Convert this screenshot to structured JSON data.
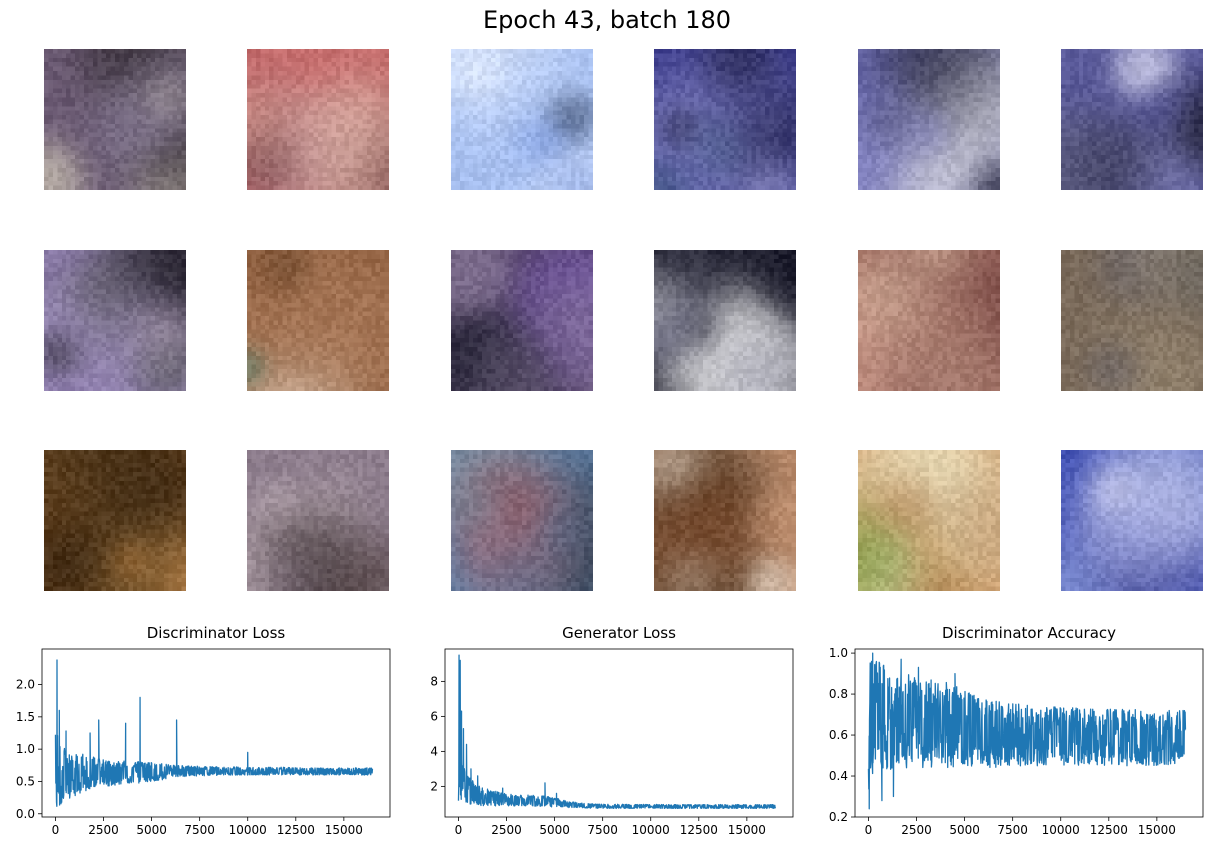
{
  "suptitle": "Epoch 43, batch 180",
  "sample_grid": {
    "rows": 3,
    "cols": 6,
    "images": [
      {
        "name": "sample-image-1",
        "palette": [
          "#6b5a73",
          "#c8c0b0",
          "#2a2428",
          "#8a7e9a",
          "#3c3a4a"
        ]
      },
      {
        "name": "sample-image-2",
        "palette": [
          "#c46a6a",
          "#f0e8e0",
          "#5a3a3a",
          "#9a5a6a",
          "#d8a090"
        ]
      },
      {
        "name": "sample-image-3",
        "palette": [
          "#a8c0f0",
          "#e8f0ff",
          "#3a4a6a",
          "#6a8ad8",
          "#2a2a3a"
        ]
      },
      {
        "name": "sample-image-4",
        "palette": [
          "#3a3a8a",
          "#1a1a3a",
          "#6a6ab8",
          "#8a8ac0",
          "#2a4a6a"
        ]
      },
      {
        "name": "sample-image-5",
        "palette": [
          "#6a6ab0",
          "#1a1a2a",
          "#8a8ac8",
          "#e0e0e0",
          "#3a3a5a"
        ]
      },
      {
        "name": "sample-image-6",
        "palette": [
          "#5a5a9a",
          "#1a1a2a",
          "#d8d8f0",
          "#8a8ac0",
          "#3a3a4a"
        ]
      },
      {
        "name": "sample-image-7",
        "palette": [
          "#8a7aa8",
          "#0a0a0a",
          "#c0b0c0",
          "#a090c0",
          "#5a5a5a"
        ]
      },
      {
        "name": "sample-image-8",
        "palette": [
          "#8a5a3a",
          "#f0e0d0",
          "#5a3a20",
          "#b08060",
          "#3a7a6a"
        ]
      },
      {
        "name": "sample-image-9",
        "palette": [
          "#5a4a6a",
          "#1a1a2a",
          "#8a7a9a",
          "#c09080",
          "#6a4aa8"
        ]
      },
      {
        "name": "sample-image-10",
        "palette": [
          "#1a1a2a",
          "#c8d8f0",
          "#3a3a4a",
          "#f0f0f0",
          "#5a5a7a"
        ]
      },
      {
        "name": "sample-image-11",
        "palette": [
          "#b07a6a",
          "#6a3a3a",
          "#d0a090",
          "#8a5a5a",
          "#e0c0a8"
        ]
      },
      {
        "name": "sample-image-12",
        "palette": [
          "#7a6a5a",
          "#4a4a3a",
          "#a09078",
          "#8a8a8a",
          "#5a5a6a"
        ]
      },
      {
        "name": "sample-image-13",
        "palette": [
          "#5a3a1a",
          "#c08040",
          "#2a1a0a",
          "#e0a060",
          "#7a5a30"
        ]
      },
      {
        "name": "sample-image-14",
        "palette": [
          "#8a7a8a",
          "#2a2020",
          "#c0b0b8",
          "#8a6ab0",
          "#5a4a4a"
        ]
      },
      {
        "name": "sample-image-15",
        "palette": [
          "#5a7aa0",
          "#c06060",
          "#2a3a4a",
          "#8090a0",
          "#a05050"
        ]
      },
      {
        "name": "sample-image-16",
        "palette": [
          "#c09070",
          "#6a3a1a",
          "#f0e0d0",
          "#9a6040",
          "#3a2a1a"
        ]
      },
      {
        "name": "sample-image-17",
        "palette": [
          "#d0a070",
          "#8aa040",
          "#f0f0d0",
          "#a06030",
          "#6a8a3a"
        ]
      },
      {
        "name": "sample-image-18",
        "palette": [
          "#3a4ab0",
          "#5a6ad0",
          "#d8d8f0",
          "#2a2a6a",
          "#8a9ad8"
        ]
      }
    ]
  },
  "line_color": "#1f77b4",
  "chart_data": [
    {
      "type": "line",
      "title": "Discriminator Loss",
      "xlabel": "",
      "ylabel": "",
      "xlim": [
        -700,
        17400
      ],
      "ylim": [
        -0.05,
        2.55
      ],
      "xticks": [
        0,
        2500,
        5000,
        7500,
        10000,
        12500,
        15000
      ],
      "xtick_labels": [
        "0",
        "2500",
        "5000",
        "7500",
        "10000",
        "12500",
        "15000"
      ],
      "yticks": [
        0.0,
        0.5,
        1.0,
        1.5,
        2.0
      ],
      "ytick_labels": [
        "0.0",
        "0.5",
        "1.0",
        "1.5",
        "2.0"
      ],
      "x": [
        0,
        60,
        150,
        300,
        500,
        800,
        1200,
        1600,
        2000,
        2500,
        3000,
        3500,
        4000,
        4500,
        5000,
        5500,
        6000,
        6500,
        7000,
        8000,
        9000,
        10000,
        11000,
        12000,
        13000,
        14000,
        15000,
        16000,
        16500
      ],
      "mean": [
        0.55,
        0.5,
        0.45,
        0.48,
        0.52,
        0.55,
        0.6,
        0.58,
        0.6,
        0.62,
        0.6,
        0.62,
        0.6,
        0.62,
        0.6,
        0.64,
        0.65,
        0.66,
        0.66,
        0.66,
        0.66,
        0.66,
        0.66,
        0.66,
        0.66,
        0.66,
        0.66,
        0.66,
        0.66
      ],
      "low": [
        0.1,
        0.05,
        0.1,
        0.15,
        0.2,
        0.25,
        0.3,
        0.35,
        0.4,
        0.42,
        0.44,
        0.45,
        0.46,
        0.48,
        0.5,
        0.52,
        0.55,
        0.57,
        0.58,
        0.59,
        0.6,
        0.6,
        0.6,
        0.6,
        0.6,
        0.6,
        0.6,
        0.6,
        0.6
      ],
      "high": [
        1.3,
        1.4,
        1.25,
        1.2,
        1.1,
        1.0,
        0.95,
        0.92,
        0.88,
        0.86,
        0.84,
        0.82,
        0.82,
        0.8,
        0.8,
        0.78,
        0.76,
        0.75,
        0.74,
        0.73,
        0.73,
        0.72,
        0.72,
        0.72,
        0.71,
        0.71,
        0.71,
        0.71,
        0.71
      ],
      "spikes": [
        [
          80,
          2.38
        ],
        [
          200,
          1.6
        ],
        [
          550,
          1.28
        ],
        [
          1800,
          1.25
        ],
        [
          2250,
          1.45
        ],
        [
          3650,
          1.4
        ],
        [
          4400,
          1.8
        ],
        [
          6300,
          1.45
        ],
        [
          10000,
          0.95
        ]
      ]
    },
    {
      "type": "line",
      "title": "Generator Loss",
      "xlabel": "",
      "ylabel": "",
      "xlim": [
        -700,
        17400
      ],
      "ylim": [
        0.25,
        9.85
      ],
      "xticks": [
        0,
        2500,
        5000,
        7500,
        10000,
        12500,
        15000
      ],
      "xtick_labels": [
        "0",
        "2500",
        "5000",
        "7500",
        "10000",
        "12500",
        "15000"
      ],
      "yticks": [
        2,
        4,
        6,
        8
      ],
      "ytick_labels": [
        "2",
        "4",
        "6",
        "8"
      ],
      "x": [
        0,
        60,
        150,
        300,
        500,
        800,
        1200,
        1600,
        2000,
        2500,
        3000,
        3500,
        4000,
        4500,
        5000,
        5500,
        6000,
        6500,
        7000,
        8000,
        9000,
        10000,
        11000,
        12000,
        13000,
        14000,
        15000,
        16000,
        16500
      ],
      "mean": [
        1.8,
        2.5,
        2.6,
        2.0,
        1.7,
        1.5,
        1.4,
        1.3,
        1.25,
        1.2,
        1.2,
        1.2,
        1.2,
        1.15,
        1.1,
        1.0,
        0.95,
        0.9,
        0.88,
        0.85,
        0.85,
        0.85,
        0.85,
        0.85,
        0.85,
        0.85,
        0.85,
        0.85,
        0.85
      ],
      "low": [
        0.7,
        1.0,
        1.2,
        1.1,
        1.0,
        0.95,
        0.9,
        0.9,
        0.88,
        0.88,
        0.88,
        0.87,
        0.86,
        0.85,
        0.82,
        0.8,
        0.78,
        0.76,
        0.75,
        0.74,
        0.74,
        0.74,
        0.74,
        0.74,
        0.74,
        0.74,
        0.74,
        0.74,
        0.74
      ],
      "high": [
        3.5,
        6.0,
        4.5,
        3.2,
        2.6,
        2.3,
        2.0,
        1.8,
        1.7,
        1.6,
        1.5,
        1.5,
        1.55,
        1.45,
        1.35,
        1.2,
        1.1,
        1.05,
        1.0,
        0.98,
        0.97,
        0.97,
        0.96,
        0.96,
        0.96,
        0.96,
        0.96,
        0.96,
        0.96
      ],
      "spikes": [
        [
          30,
          9.5
        ],
        [
          90,
          9.2
        ],
        [
          160,
          6.3
        ],
        [
          260,
          5.3
        ],
        [
          420,
          4.4
        ],
        [
          650,
          3.0
        ],
        [
          1000,
          2.6
        ],
        [
          2300,
          1.9
        ],
        [
          4500,
          2.2
        ],
        [
          5100,
          1.6
        ]
      ]
    },
    {
      "type": "line",
      "title": "Discriminator Accuracy",
      "xlabel": "",
      "ylabel": "",
      "xlim": [
        -700,
        17400
      ],
      "ylim": [
        0.2,
        1.02
      ],
      "xticks": [
        0,
        2500,
        5000,
        7500,
        10000,
        12500,
        15000
      ],
      "xtick_labels": [
        "0",
        "2500",
        "5000",
        "7500",
        "10000",
        "12500",
        "15000"
      ],
      "yticks": [
        0.2,
        0.4,
        0.6,
        0.8,
        1.0
      ],
      "ytick_labels": [
        "0.2",
        "0.4",
        "0.6",
        "0.8",
        "1.0"
      ],
      "x": [
        0,
        60,
        150,
        300,
        500,
        800,
        1200,
        1600,
        2000,
        2500,
        3000,
        3500,
        4000,
        4500,
        5000,
        5500,
        6000,
        6500,
        7000,
        8000,
        9000,
        10000,
        11000,
        12000,
        13000,
        14000,
        15000,
        16000,
        16500
      ],
      "mean": [
        0.7,
        0.72,
        0.72,
        0.72,
        0.7,
        0.7,
        0.7,
        0.69,
        0.68,
        0.68,
        0.67,
        0.66,
        0.65,
        0.64,
        0.62,
        0.6,
        0.6,
        0.59,
        0.58,
        0.58,
        0.58,
        0.58,
        0.58,
        0.58,
        0.58,
        0.58,
        0.58,
        0.58,
        0.58
      ],
      "low": [
        0.35,
        0.3,
        0.4,
        0.42,
        0.42,
        0.43,
        0.42,
        0.43,
        0.43,
        0.44,
        0.44,
        0.44,
        0.44,
        0.44,
        0.44,
        0.44,
        0.44,
        0.44,
        0.44,
        0.45,
        0.45,
        0.45,
        0.45,
        0.45,
        0.45,
        0.45,
        0.45,
        0.46,
        0.47
      ],
      "high": [
        1.0,
        1.0,
        1.0,
        0.98,
        0.96,
        0.94,
        0.92,
        0.9,
        0.9,
        0.88,
        0.88,
        0.86,
        0.86,
        0.85,
        0.82,
        0.8,
        0.78,
        0.77,
        0.76,
        0.75,
        0.74,
        0.74,
        0.73,
        0.73,
        0.73,
        0.73,
        0.72,
        0.72,
        0.72
      ],
      "spikes": [
        [
          40,
          0.24
        ],
        [
          220,
          1.0
        ],
        [
          700,
          0.28
        ],
        [
          1300,
          0.3
        ],
        [
          1700,
          0.97
        ],
        [
          2600,
          0.93
        ],
        [
          4500,
          0.9
        ]
      ]
    }
  ]
}
